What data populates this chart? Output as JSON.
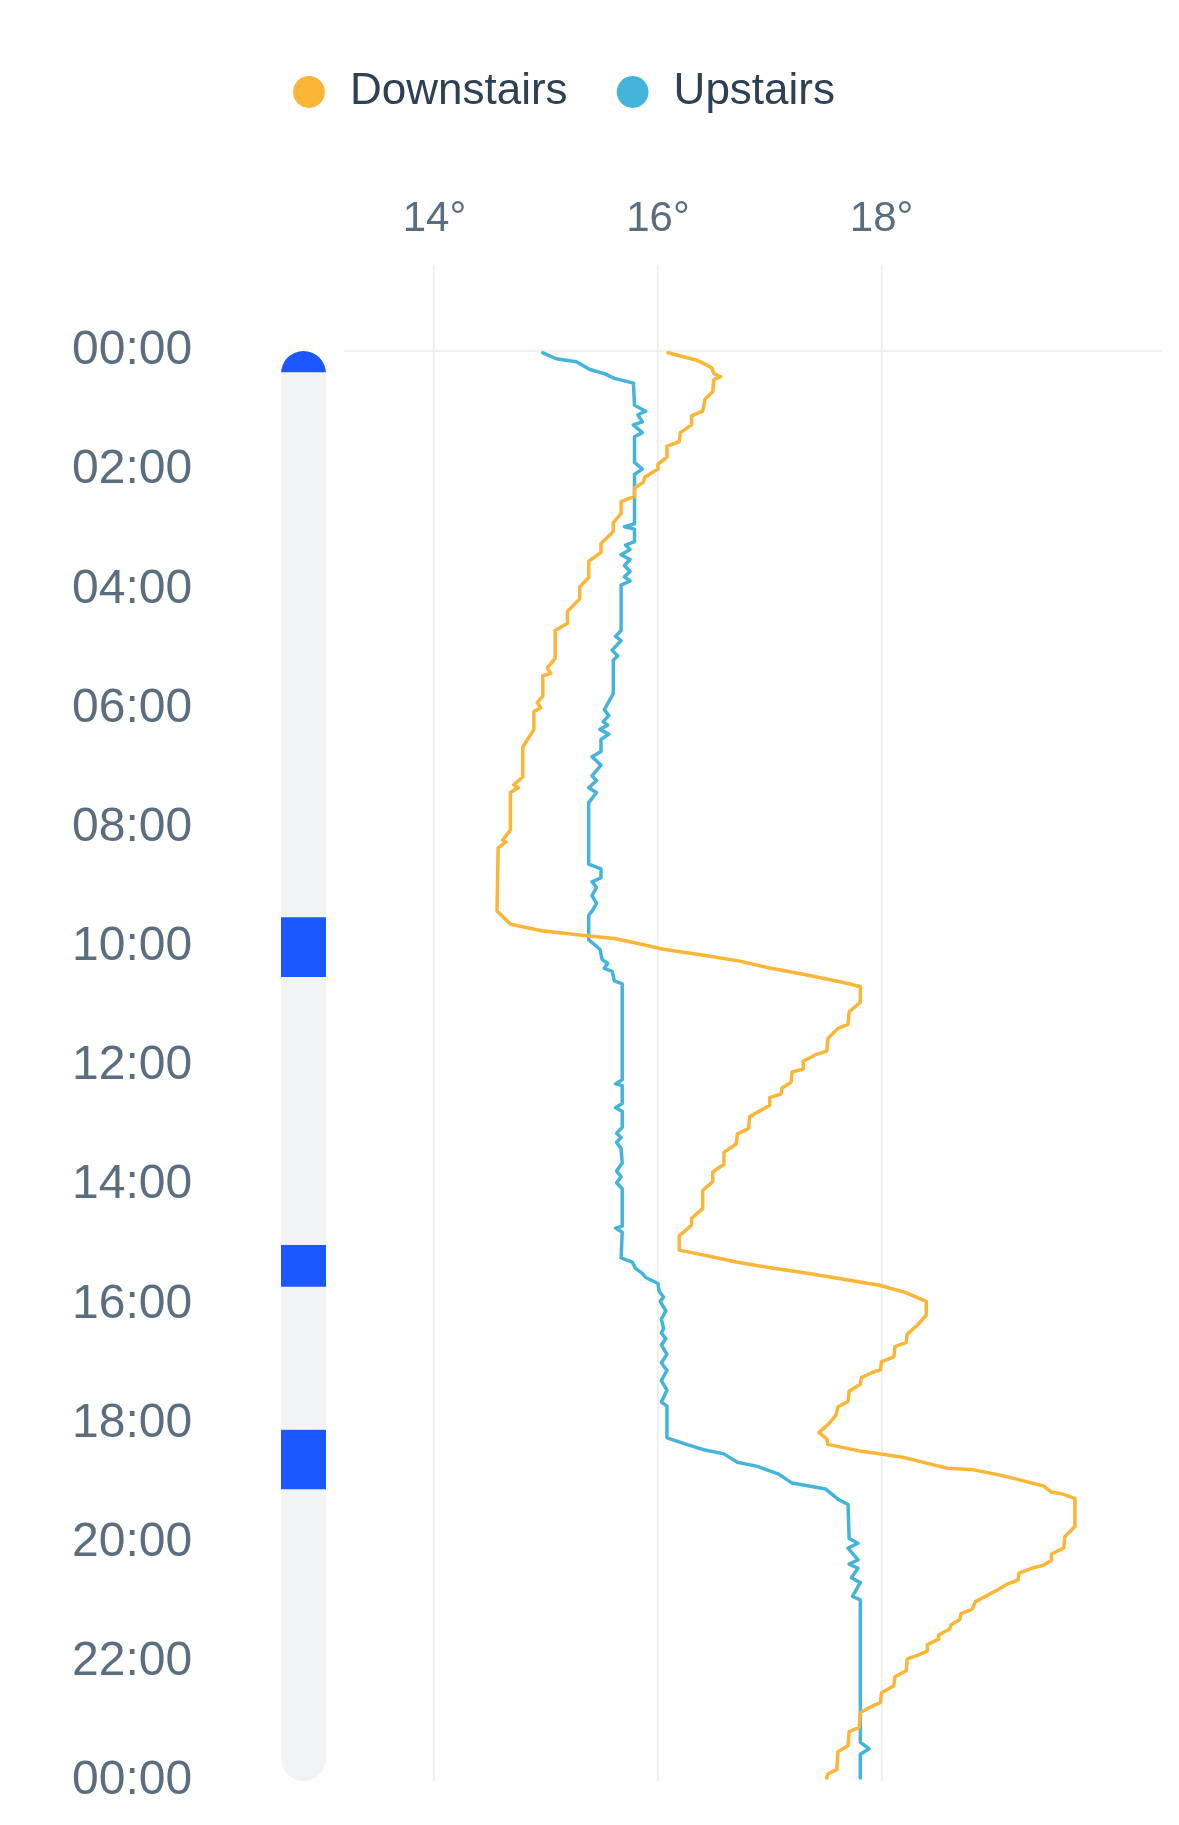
{
  "chart_data": [
    {
      "type": "line",
      "xlim": [
        13.2,
        20.5
      ],
      "xticks": [
        {
          "value": 14,
          "label": "14°"
        },
        {
          "value": 16,
          "label": "16°"
        },
        {
          "value": 18,
          "label": "18°"
        }
      ],
      "ylim": [
        24,
        0
      ],
      "yticks": [
        {
          "value": 0,
          "label": "00:00"
        },
        {
          "value": 2,
          "label": "02:00"
        },
        {
          "value": 4,
          "label": "04:00"
        },
        {
          "value": 6,
          "label": "06:00"
        },
        {
          "value": 8,
          "label": "08:00"
        },
        {
          "value": 10,
          "label": "10:00"
        },
        {
          "value": 12,
          "label": "12:00"
        },
        {
          "value": 14,
          "label": "14:00"
        },
        {
          "value": 16,
          "label": "16:00"
        },
        {
          "value": 18,
          "label": "18:00"
        },
        {
          "value": 20,
          "label": "20:00"
        },
        {
          "value": 22,
          "label": "22:00"
        },
        {
          "value": 24,
          "label": "00:00"
        }
      ],
      "grid": "x",
      "legend": "top",
      "marker": "none",
      "line_style": "solid",
      "series": [
        {
          "name": "Downstairs",
          "color": "#fbb537",
          "x": [
            16.09,
            16.34,
            16.43,
            16.48,
            16.5,
            16.56,
            16.5,
            16.49,
            16.42,
            16.4,
            16.3,
            16.3,
            16.2,
            16.19,
            16.08,
            16.08,
            16.0,
            16.0,
            15.88,
            15.87,
            15.79,
            15.79,
            15.67,
            15.67,
            15.6,
            15.6,
            15.49,
            15.49,
            15.38,
            15.38,
            15.3,
            15.3,
            15.19,
            15.19,
            15.08,
            15.08,
            15.01,
            15.04,
            14.97,
            14.97,
            14.92,
            14.95,
            14.89,
            14.89,
            14.79,
            14.79,
            14.71,
            14.75,
            14.68,
            14.68,
            14.61,
            14.64,
            14.57,
            14.56,
            14.68,
            14.96,
            15.34,
            15.61,
            15.79,
            16.05,
            16.41,
            16.73,
            17.01,
            17.3,
            17.51,
            17.71,
            17.81,
            17.81,
            17.71,
            17.7,
            17.61,
            17.52,
            17.51,
            17.41,
            17.3,
            17.3,
            17.2,
            17.19,
            17.11,
            17.1,
            17.0,
            17.0,
            16.82,
            16.81,
            16.71,
            16.7,
            16.59,
            16.59,
            16.49,
            16.49,
            16.4,
            16.4,
            16.3,
            16.3,
            16.19,
            16.19,
            16.45,
            16.7,
            17.02,
            17.38,
            17.66,
            17.98,
            18.21,
            18.4,
            18.4,
            18.32,
            18.23,
            18.22,
            18.12,
            18.11,
            18.0,
            17.99,
            17.92,
            17.82,
            17.81,
            17.71,
            17.7,
            17.61,
            17.59,
            17.52,
            17.44,
            17.51,
            17.52,
            17.8,
            17.95,
            18.2,
            18.41,
            18.59,
            18.8,
            19.02,
            19.2,
            19.45,
            19.52,
            19.63,
            19.73,
            19.73,
            19.64,
            19.63,
            19.52,
            19.52,
            19.45,
            19.34,
            19.23,
            19.22,
            19.13,
            19.04,
            18.84,
            18.81,
            18.71,
            18.7,
            18.62,
            18.61,
            18.51,
            18.51,
            18.41,
            18.41,
            18.32,
            18.23,
            18.22,
            18.12,
            18.11,
            18.0,
            17.99,
            17.91,
            17.81,
            17.8,
            17.71,
            17.7,
            17.61,
            17.6,
            17.52,
            17.51
          ],
          "values": [
            0.03,
            0.15,
            0.23,
            0.28,
            0.38,
            0.43,
            0.48,
            0.68,
            0.81,
            1.01,
            1.09,
            1.24,
            1.37,
            1.52,
            1.6,
            1.78,
            1.9,
            1.98,
            2.12,
            2.2,
            2.3,
            2.44,
            2.53,
            2.73,
            2.88,
            3.03,
            3.23,
            3.38,
            3.53,
            3.8,
            3.96,
            4.16,
            4.37,
            4.57,
            4.69,
            5.16,
            5.32,
            5.41,
            5.45,
            5.79,
            5.9,
            5.99,
            6.05,
            6.35,
            6.65,
            7.15,
            7.28,
            7.33,
            7.41,
            8.04,
            8.21,
            8.24,
            8.34,
            9.4,
            9.62,
            9.73,
            9.81,
            9.86,
            9.93,
            10.04,
            10.14,
            10.24,
            10.36,
            10.46,
            10.54,
            10.62,
            10.67,
            10.93,
            11.09,
            11.3,
            11.37,
            11.54,
            11.75,
            11.81,
            11.92,
            12.05,
            12.1,
            12.27,
            12.37,
            12.47,
            12.53,
            12.66,
            12.85,
            13.05,
            13.14,
            13.31,
            13.45,
            13.65,
            13.78,
            13.94,
            14.09,
            14.39,
            14.56,
            14.67,
            14.85,
            15.09,
            15.19,
            15.29,
            15.39,
            15.49,
            15.58,
            15.68,
            15.8,
            15.95,
            16.18,
            16.35,
            16.5,
            16.64,
            16.71,
            16.88,
            16.96,
            17.1,
            17.14,
            17.23,
            17.34,
            17.46,
            17.63,
            17.72,
            17.87,
            18.02,
            18.15,
            18.26,
            18.35,
            18.46,
            18.5,
            18.57,
            18.67,
            18.75,
            18.77,
            18.85,
            18.93,
            19.05,
            19.15,
            19.19,
            19.26,
            19.73,
            19.9,
            20.09,
            20.19,
            20.29,
            20.38,
            20.43,
            20.51,
            20.63,
            20.69,
            20.79,
            20.99,
            21.12,
            21.19,
            21.29,
            21.38,
            21.45,
            21.55,
            21.62,
            21.71,
            21.82,
            21.89,
            21.95,
            22.15,
            22.25,
            22.4,
            22.52,
            22.68,
            22.75,
            22.85,
            23.1,
            23.17,
            23.41,
            23.51,
            23.81,
            23.88,
            23.95
          ]
        },
        {
          "name": "Upstairs",
          "color": "#45b4db",
          "x": [
            14.97,
            15.09,
            15.27,
            15.39,
            15.52,
            15.61,
            15.78,
            15.79,
            15.89,
            15.82,
            15.86,
            15.78,
            15.86,
            15.79,
            15.79,
            15.86,
            15.79,
            15.79,
            15.7,
            15.79,
            15.79,
            15.71,
            15.75,
            15.67,
            15.75,
            15.7,
            15.75,
            15.7,
            15.75,
            15.67,
            15.67,
            15.62,
            15.67,
            15.59,
            15.64,
            15.6,
            15.6,
            15.52,
            15.56,
            15.51,
            15.55,
            15.48,
            15.56,
            15.49,
            15.49,
            15.41,
            15.49,
            15.41,
            15.45,
            15.38,
            15.45,
            15.41,
            15.38,
            15.38,
            15.49,
            15.49,
            15.41,
            15.45,
            15.41,
            15.45,
            15.41,
            15.38,
            15.38,
            15.48,
            15.5,
            15.55,
            15.52,
            15.59,
            15.61,
            15.68,
            15.68,
            15.62,
            15.68,
            15.68,
            15.62,
            15.68,
            15.68,
            15.63,
            15.67,
            15.63,
            15.67,
            15.68,
            15.63,
            15.67,
            15.63,
            15.68,
            15.68,
            15.62,
            15.68,
            15.67,
            15.77,
            15.8,
            15.86,
            15.89,
            16.0,
            16.01,
            16.05,
            16.02,
            16.07,
            16.03,
            16.05,
            16.03,
            16.07,
            16.03,
            16.08,
            16.03,
            16.08,
            16.03,
            16.08,
            16.03,
            16.08,
            16.08,
            16.27,
            16.41,
            16.59,
            16.71,
            16.89,
            17.08,
            17.2,
            17.5,
            17.61,
            17.7,
            17.71,
            17.79,
            17.7,
            17.79,
            17.71,
            17.79,
            17.73,
            17.81,
            17.74,
            17.81,
            17.81,
            17.89,
            17.81,
            17.81
          ],
          "values": [
            0.03,
            0.13,
            0.18,
            0.31,
            0.38,
            0.46,
            0.54,
            0.91,
            1.01,
            1.07,
            1.19,
            1.24,
            1.37,
            1.44,
            1.87,
            1.98,
            2.07,
            2.9,
            2.95,
            2.99,
            3.2,
            3.26,
            3.33,
            3.42,
            3.5,
            3.6,
            3.7,
            3.79,
            3.86,
            3.93,
            4.69,
            4.79,
            4.86,
            5.02,
            5.12,
            5.19,
            5.75,
            6.02,
            6.12,
            6.22,
            6.28,
            6.35,
            6.43,
            6.52,
            6.72,
            6.81,
            6.95,
            7.13,
            7.21,
            7.33,
            7.41,
            7.51,
            7.58,
            8.61,
            8.69,
            8.84,
            8.91,
            9.0,
            9.14,
            9.27,
            9.4,
            9.47,
            9.88,
            10.04,
            10.21,
            10.28,
            10.36,
            10.41,
            10.57,
            10.62,
            12.23,
            12.3,
            12.33,
            12.63,
            12.7,
            12.76,
            13.03,
            13.13,
            13.2,
            13.28,
            13.39,
            13.63,
            13.76,
            13.86,
            13.96,
            14.06,
            14.69,
            14.72,
            14.79,
            15.22,
            15.29,
            15.4,
            15.48,
            15.55,
            15.65,
            15.78,
            15.88,
            15.95,
            16.11,
            16.25,
            16.41,
            16.48,
            16.58,
            16.68,
            16.84,
            16.98,
            17.11,
            17.28,
            17.44,
            17.64,
            17.71,
            18.24,
            18.36,
            18.44,
            18.51,
            18.65,
            18.72,
            18.85,
            19.0,
            19.1,
            19.27,
            19.36,
            19.93,
            20.01,
            20.09,
            20.29,
            20.36,
            20.43,
            20.59,
            20.67,
            20.9,
            20.96,
            23.35,
            23.46,
            23.55,
            23.95
          ]
        }
      ]
    },
    {
      "type": "bar",
      "categories": [
        null
      ],
      "stacked": true,
      "ylim": [
        24,
        0
      ],
      "tick_labels": false,
      "series": [
        {
          "color": "#1b58ff",
          "values": [
            0.35
          ]
        },
        {
          "color": "#f2f3f5",
          "values": [
            9.15
          ]
        },
        {
          "color": "#1b58ff",
          "values": [
            1.0
          ]
        },
        {
          "color": "#f2f3f5",
          "values": [
            4.5
          ]
        },
        {
          "color": "#1b58ff",
          "values": [
            0.7
          ]
        },
        {
          "color": "#f2f3f5",
          "values": [
            2.4
          ]
        },
        {
          "color": "#1b58ff",
          "values": [
            1.0
          ]
        },
        {
          "color": "#f2f3f5",
          "values": [
            4.9
          ]
        }
      ]
    }
  ]
}
